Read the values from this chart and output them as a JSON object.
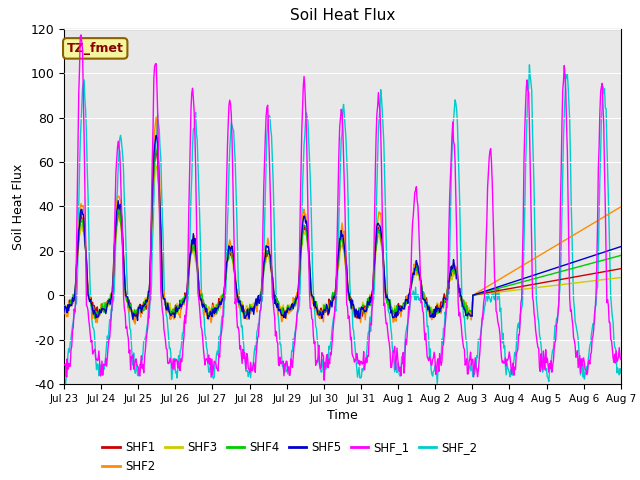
{
  "title": "Soil Heat Flux",
  "xlabel": "Time",
  "ylabel": "Soil Heat Flux",
  "ylim": [
    -40,
    120
  ],
  "annotation_text": "TZ_fmet",
  "annotation_color": "#8B0000",
  "annotation_bg": "#F5F5A0",
  "annotation_border": "#8B6000",
  "bg_color": "#E8E8E8",
  "series_colors": {
    "SHF1": "#CC0000",
    "SHF2": "#FF8C00",
    "SHF3": "#CCCC00",
    "SHF4": "#00CC00",
    "SHF5": "#0000CC",
    "SHF_1": "#FF00FF",
    "SHF_2": "#00CCCC"
  },
  "xtick_labels": [
    "Jul 23",
    "Jul 24",
    "Jul 25",
    "Jul 26",
    "Jul 27",
    "Jul 28",
    "Jul 29",
    "Jul 30",
    "Jul 31",
    "Aug 1",
    "Aug 2",
    "Aug 3",
    "Aug 4",
    "Aug 5",
    "Aug 6",
    "Aug 7"
  ],
  "ytick_values": [
    -40,
    -20,
    0,
    20,
    40,
    60,
    80,
    100,
    120
  ],
  "n_days": 15,
  "pts_per_day": 48
}
